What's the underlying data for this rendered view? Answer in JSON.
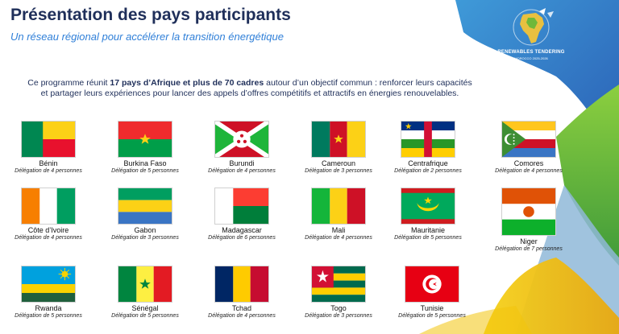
{
  "header": {
    "title": "Présentation des pays participants",
    "subtitle": "Un réseau régional pour accélérer la transition énergétique"
  },
  "logo": {
    "line1": "RENEWABLES TENDERING",
    "line2": "MOROCCO 2025-2026"
  },
  "intro": {
    "part1": "Ce programme réunit ",
    "bold": "17 pays d’Afrique et plus de 70 cadres",
    "part2": " autour d’un objectif commun : renforcer leurs capacités et partager leurs expériences pour lancer des appels d’offres compétitifs et attractifs en énergies renouvelables."
  },
  "countries": [
    {
      "name": "Bénin",
      "delegation": "Délégation de 4 personnes"
    },
    {
      "name": "Burkina Faso",
      "delegation": "Délégation de 5 personnes"
    },
    {
      "name": "Burundi",
      "delegation": "Délégation de 4 personnes"
    },
    {
      "name": "Cameroun",
      "delegation": "Délégation de 3 personnes"
    },
    {
      "name": "Centrafrique",
      "delegation": "Délégation de 2 personnes"
    },
    {
      "name": "Comores",
      "delegation": "Délégation de 4 personnes"
    },
    {
      "name": "Côte d’Ivoire",
      "delegation": "Délégation de 4 personnes"
    },
    {
      "name": "Gabon",
      "delegation": "Délégation de 3 personnes"
    },
    {
      "name": "Madagascar",
      "delegation": "Délégation de 6 personnes"
    },
    {
      "name": "Mali",
      "delegation": "Délégation de 4 personnes"
    },
    {
      "name": "Mauritanie",
      "delegation": "Délégation de 5 personnes"
    },
    {
      "name": "Niger",
      "delegation": "Délégation de 7 personnes"
    },
    {
      "name": "Rwanda",
      "delegation": "Délégation de 5 personnes"
    },
    {
      "name": "Sénégal",
      "delegation": "Délégation de 5 personnes"
    },
    {
      "name": "Tchad",
      "delegation": "Délégation de 4 personnes"
    },
    {
      "name": "Togo",
      "delegation": "Délégation de 3 personnes"
    },
    {
      "name": "Tunisie",
      "delegation": "Délégation de 5 personnes"
    }
  ],
  "colors": {
    "title": "#1f2f5a",
    "subtitle": "#2f7fd8",
    "deco_blue": "#2f6fc0",
    "deco_green": "#6fb83a",
    "deco_yellow": "#f2c40c"
  }
}
